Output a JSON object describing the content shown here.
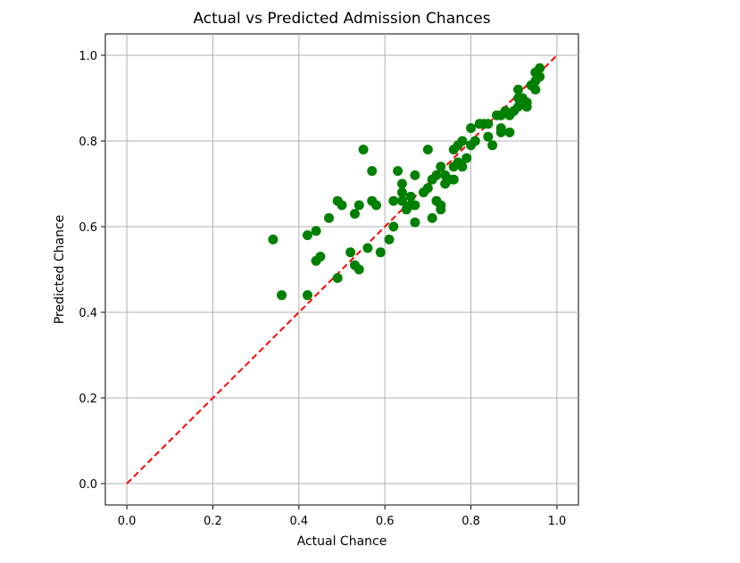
{
  "chart_data": {
    "type": "scatter",
    "title": "Actual vs Predicted Admission Chances",
    "xlabel": "Actual Chance",
    "ylabel": "Predicted Chance",
    "xlim": [
      -0.05,
      1.05
    ],
    "ylim": [
      -0.05,
      1.05
    ],
    "xticks": [
      "0.0",
      "0.2",
      "0.4",
      "0.6",
      "0.8",
      "1.0"
    ],
    "yticks": [
      "0.0",
      "0.2",
      "0.4",
      "0.6",
      "0.8",
      "1.0"
    ],
    "grid": true,
    "point_color": "#008000",
    "reference_line": {
      "from": [
        0,
        0
      ],
      "to": [
        1,
        1
      ],
      "color": "#ff0000",
      "style": "dashed"
    },
    "series": [
      {
        "points": [
          [
            0.34,
            0.57
          ],
          [
            0.36,
            0.44
          ],
          [
            0.42,
            0.58
          ],
          [
            0.42,
            0.44
          ],
          [
            0.44,
            0.59
          ],
          [
            0.44,
            0.52
          ],
          [
            0.45,
            0.53
          ],
          [
            0.47,
            0.62
          ],
          [
            0.49,
            0.66
          ],
          [
            0.49,
            0.48
          ],
          [
            0.5,
            0.65
          ],
          [
            0.52,
            0.54
          ],
          [
            0.53,
            0.63
          ],
          [
            0.53,
            0.51
          ],
          [
            0.54,
            0.65
          ],
          [
            0.54,
            0.5
          ],
          [
            0.55,
            0.78
          ],
          [
            0.56,
            0.55
          ],
          [
            0.57,
            0.73
          ],
          [
            0.57,
            0.66
          ],
          [
            0.58,
            0.65
          ],
          [
            0.59,
            0.54
          ],
          [
            0.61,
            0.57
          ],
          [
            0.62,
            0.66
          ],
          [
            0.62,
            0.6
          ],
          [
            0.63,
            0.73
          ],
          [
            0.64,
            0.7
          ],
          [
            0.64,
            0.68
          ],
          [
            0.64,
            0.66
          ],
          [
            0.65,
            0.64
          ],
          [
            0.66,
            0.67
          ],
          [
            0.66,
            0.65
          ],
          [
            0.67,
            0.72
          ],
          [
            0.67,
            0.65
          ],
          [
            0.67,
            0.61
          ],
          [
            0.69,
            0.68
          ],
          [
            0.7,
            0.78
          ],
          [
            0.7,
            0.69
          ],
          [
            0.71,
            0.71
          ],
          [
            0.71,
            0.62
          ],
          [
            0.72,
            0.72
          ],
          [
            0.72,
            0.66
          ],
          [
            0.73,
            0.74
          ],
          [
            0.73,
            0.65
          ],
          [
            0.73,
            0.64
          ],
          [
            0.74,
            0.72
          ],
          [
            0.74,
            0.7
          ],
          [
            0.75,
            0.71
          ],
          [
            0.76,
            0.78
          ],
          [
            0.76,
            0.74
          ],
          [
            0.76,
            0.71
          ],
          [
            0.77,
            0.79
          ],
          [
            0.77,
            0.75
          ],
          [
            0.78,
            0.8
          ],
          [
            0.78,
            0.74
          ],
          [
            0.79,
            0.76
          ],
          [
            0.8,
            0.83
          ],
          [
            0.8,
            0.79
          ],
          [
            0.81,
            0.8
          ],
          [
            0.82,
            0.84
          ],
          [
            0.83,
            0.84
          ],
          [
            0.84,
            0.84
          ],
          [
            0.84,
            0.81
          ],
          [
            0.85,
            0.79
          ],
          [
            0.86,
            0.86
          ],
          [
            0.87,
            0.86
          ],
          [
            0.87,
            0.83
          ],
          [
            0.87,
            0.82
          ],
          [
            0.88,
            0.87
          ],
          [
            0.89,
            0.82
          ],
          [
            0.89,
            0.86
          ],
          [
            0.9,
            0.87
          ],
          [
            0.91,
            0.92
          ],
          [
            0.91,
            0.88
          ],
          [
            0.92,
            0.9
          ],
          [
            0.93,
            0.89
          ],
          [
            0.93,
            0.88
          ],
          [
            0.94,
            0.93
          ],
          [
            0.95,
            0.96
          ],
          [
            0.95,
            0.94
          ],
          [
            0.96,
            0.95
          ],
          [
            0.96,
            0.97
          ],
          [
            0.95,
            0.92
          ],
          [
            0.91,
            0.9
          ]
        ]
      }
    ]
  }
}
